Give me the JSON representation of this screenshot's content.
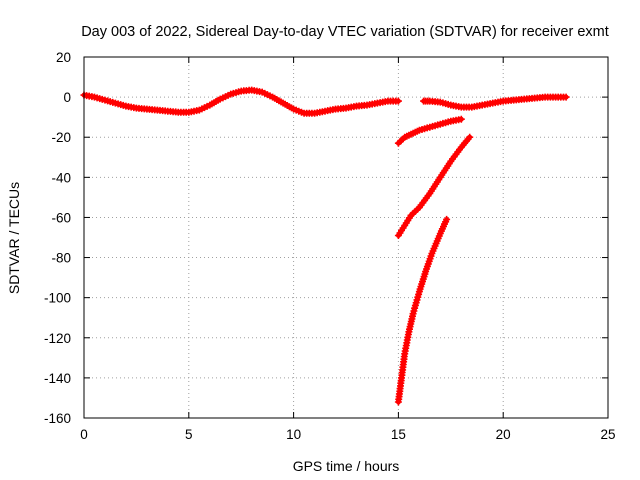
{
  "chart_data": {
    "type": "line",
    "title": "Day 003 of 2022, Sidereal Day-to-day VTEC variation (SDTVAR) for receiver exmt",
    "xlabel": "GPS time / hours",
    "ylabel": "SDTVAR / TECUs",
    "xlim": [
      0,
      25
    ],
    "ylim": [
      -160,
      20
    ],
    "x_ticks": [
      0,
      5,
      10,
      15,
      20,
      25
    ],
    "y_ticks": [
      20,
      0,
      -20,
      -40,
      -60,
      -80,
      -100,
      -120,
      -140,
      -160
    ],
    "grid": true,
    "series_color": "#ff0000",
    "series": [
      {
        "name": "main-trace-a",
        "x": [
          0,
          0.5,
          1,
          1.5,
          2,
          2.5,
          3,
          3.5,
          4,
          4.5,
          5,
          5.5,
          6,
          6.5,
          7,
          7.5,
          8,
          8.5,
          9,
          9.5,
          10,
          10.5,
          11,
          11.5,
          12,
          12.5,
          13,
          13.5,
          14,
          14.5,
          15
        ],
        "y": [
          1,
          0,
          -1.5,
          -3,
          -4.5,
          -5.5,
          -6,
          -6.5,
          -7,
          -7.5,
          -7.5,
          -6.5,
          -4,
          -1,
          1.5,
          3,
          3.5,
          2.5,
          0,
          -3,
          -6,
          -8,
          -8,
          -7,
          -6,
          -5.5,
          -4.5,
          -4,
          -3,
          -2,
          -2
        ]
      },
      {
        "name": "main-trace-b",
        "x": [
          16.2,
          16.5,
          17,
          17.5,
          18,
          18.5,
          19,
          19.5,
          20,
          20.5,
          21,
          21.5,
          22,
          22.5,
          23
        ],
        "y": [
          -2,
          -2,
          -2.5,
          -4,
          -5,
          -5,
          -4,
          -3,
          -2,
          -1.5,
          -1,
          -0.5,
          0,
          0,
          0
        ]
      },
      {
        "name": "arc-upper",
        "x": [
          15,
          15.3,
          15.7,
          16,
          16.5,
          17,
          17.5,
          18
        ],
        "y": [
          -23,
          -20,
          -18,
          -16.5,
          -15,
          -13.5,
          -12,
          -11
        ]
      },
      {
        "name": "arc-middle",
        "x": [
          15,
          15.3,
          15.6,
          16,
          16.5,
          17,
          17.5,
          18,
          18.4
        ],
        "y": [
          -69,
          -64,
          -59,
          -55,
          -48,
          -40,
          -32,
          -25,
          -20
        ]
      },
      {
        "name": "arc-lower",
        "x": [
          15,
          15.15,
          15.3,
          15.5,
          15.7,
          16,
          16.3,
          16.6,
          17,
          17.3
        ],
        "y": [
          -152,
          -140,
          -128,
          -117,
          -108,
          -97,
          -87,
          -78,
          -68,
          -61
        ]
      }
    ]
  }
}
